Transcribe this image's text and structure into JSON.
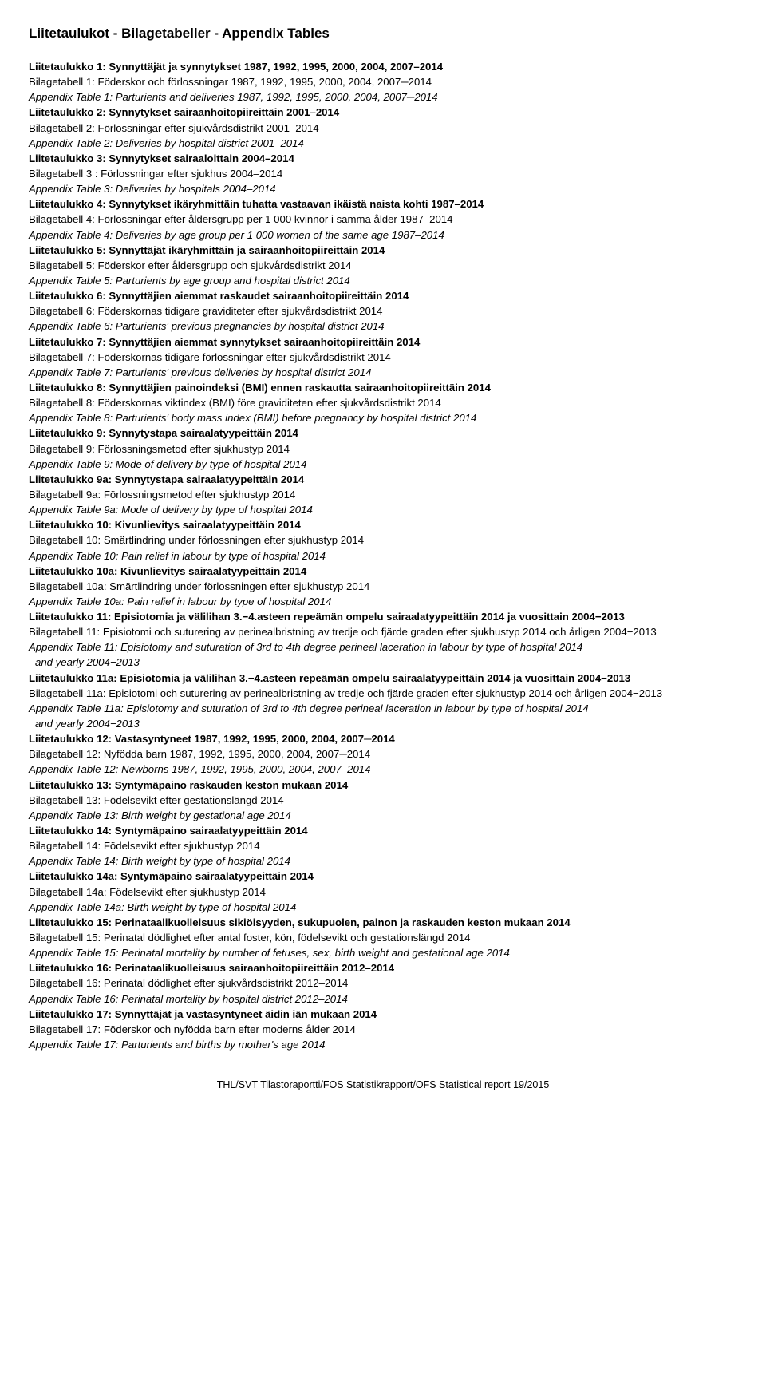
{
  "title": "Liitetaulukot - Bilagetabeller - Appendix Tables",
  "entries": [
    {
      "fi": "Liitetaulukko 1: Synnyttäjät ja synnytykset 1987, 1992, 1995, 2000, 2004, 2007–2014",
      "sv": "Bilagetabell 1: Föderskor och förlossningar 1987, 1992, 1995, 2000, 2004, 2007─2014",
      "en": "Appendix Table 1: Parturients and deliveries 1987, 1992, 1995, 2000, 2004, 2007─2014"
    },
    {
      "fi": "Liitetaulukko 2: Synnytykset sairaanhoitopiireittäin 2001–2014",
      "sv": "Bilagetabell 2: Förlossningar efter sjukvårdsdistrikt 2001–2014",
      "en": "Appendix Table 2: Deliveries by hospital district 2001–2014"
    },
    {
      "fi": "Liitetaulukko 3: Synnytykset sairaaloittain 2004–2014",
      "sv": "Bilagetabell 3 : Förlossningar efter sjukhus 2004–2014",
      "en": "Appendix Table 3: Deliveries by hospitals 2004–2014"
    },
    {
      "fi": "Liitetaulukko 4: Synnytykset ikäryhmittäin tuhatta vastaavan ikäistä naista kohti 1987–2014",
      "sv": "Bilagetabell 4: Förlossningar efter åldersgrupp per 1 000 kvinnor i samma ålder 1987–2014",
      "en": "Appendix Table 4: Deliveries by age group per 1 000 women of the same age 1987–2014"
    },
    {
      "fi": "Liitetaulukko 5: Synnyttäjät ikäryhmittäin ja sairaanhoitopiireittäin 2014",
      "sv": "Bilagetabell 5: Föderskor efter åldersgrupp och sjukvårdsdistrikt 2014",
      "en": "Appendix Table 5: Parturients by age group and hospital district 2014"
    },
    {
      "fi": "Liitetaulukko 6: Synnyttäjien aiemmat raskaudet sairaanhoitopiireittäin 2014",
      "sv": "Bilagetabell 6: Föderskornas tidigare graviditeter efter sjukvårdsdistrikt 2014",
      "en": "Appendix Table 6: Parturients' previous pregnancies by hospital district 2014"
    },
    {
      "fi": "Liitetaulukko 7: Synnyttäjien aiemmat synnytykset sairaanhoitopiireittäin 2014",
      "sv": "Bilagetabell 7: Föderskornas tidigare förlossningar efter sjukvårdsdistrikt 2014",
      "en": "Appendix Table 7: Parturients' previous deliveries by hospital district 2014"
    },
    {
      "fi": "Liitetaulukko 8: Synnyttäjien painoindeksi (BMI) ennen raskautta sairaanhoitopiireittäin 2014",
      "sv": "Bilagetabell 8: Föderskornas viktindex (BMI) före graviditeten efter sjukvårdsdistrikt 2014",
      "en": "Appendix Table 8: Parturients' body mass index (BMI) before pregnancy by hospital district 2014"
    },
    {
      "fi": "Liitetaulukko 9: Synnytystapa sairaalatyypeittäin 2014",
      "sv": "Bilagetabell 9: Förlossningsmetod efter sjukhustyp 2014",
      "en": "Appendix Table 9: Mode of delivery by type of hospital 2014"
    },
    {
      "fi": "Liitetaulukko 9a: Synnytystapa sairaalatyypeittäin 2014",
      "sv": "Bilagetabell 9a: Förlossningsmetod efter sjukhustyp 2014",
      "en": "Appendix Table 9a: Mode of delivery by type of hospital 2014"
    },
    {
      "fi": "Liitetaulukko 10: Kivunlievitys sairaalatyypeittäin 2014",
      "sv": "Bilagetabell 10: Smärtlindring under förlossningen efter sjukhustyp 2014",
      "en": "Appendix Table 10: Pain relief in labour by type of hospital 2014"
    },
    {
      "fi": "Liitetaulukko 10a: Kivunlievitys sairaalatyypeittäin 2014",
      "sv": "Bilagetabell 10a: Smärtlindring under förlossningen efter sjukhustyp 2014",
      "en": "Appendix Table 10a: Pain relief in labour by type of hospital 2014"
    },
    {
      "fi": "Liitetaulukko 11: Episiotomia ja välilihan 3.−4.asteen repeämän ompelu sairaalatyypeittäin 2014 ja vuosittain 2004−2013",
      "sv": "Bilagetabell 11: Episiotomi och suturering av perinealbristning av tredje och fjärde graden efter sjukhustyp 2014 och årligen 2004−2013",
      "en": "Appendix Table 11: Episiotomy and suturation of 3rd to 4th degree perineal laceration in labour by type of hospital 2014",
      "en_sub": " and yearly 2004−2013"
    },
    {
      "fi": "Liitetaulukko 11a: Episiotomia ja välilihan 3.−4.asteen repeämän ompelu sairaalatyypeittäin 2014 ja vuosittain 2004−2013",
      "sv": "Bilagetabell 11a: Episiotomi och suturering av perinealbristning av tredje och fjärde graden efter sjukhustyp 2014 och årligen 2004−2013",
      "en": "Appendix Table 11a: Episiotomy and suturation of 3rd to 4th degree perineal laceration in labour by type of hospital 2014",
      "en_sub": " and yearly 2004−2013"
    },
    {
      "fi": "Liitetaulukko 12: Vastasyntyneet 1987, 1992, 1995, 2000, 2004, 2007─2014",
      "sv": "Bilagetabell 12: Nyfödda barn 1987, 1992, 1995, 2000, 2004, 2007─2014",
      "en": "Appendix Table 12: Newborns 1987, 1992, 1995, 2000, 2004, 2007–2014"
    },
    {
      "fi": "Liitetaulukko 13: Syntymäpaino raskauden keston mukaan 2014",
      "sv": "Bilagetabell 13: Födelsevikt efter gestationslängd 2014",
      "en": "Appendix Table 13: Birth weight by gestational age 2014"
    },
    {
      "fi": "Liitetaulukko 14: Syntymäpaino sairaalatyypeittäin 2014",
      "sv": "Bilagetabell 14: Födelsevikt efter sjukhustyp 2014",
      "en": "Appendix Table 14: Birth weight by type of hospital 2014"
    },
    {
      "fi": "Liitetaulukko 14a: Syntymäpaino sairaalatyypeittäin 2014",
      "sv": "Bilagetabell 14a: Födelsevikt efter sjukhustyp 2014",
      "en": "Appendix Table 14a: Birth weight by type of hospital 2014"
    },
    {
      "fi": "Liitetaulukko 15: Perinataalikuolleisuus sikiöisyyden, sukupuolen, painon ja raskauden keston mukaan 2014",
      "sv": "Bilagetabell 15: Perinatal dödlighet efter antal foster, kön, födelsevikt och gestationslängd 2014",
      "en": "Appendix Table 15: Perinatal mortality by number of fetuses, sex, birth weight and gestational age 2014"
    },
    {
      "fi": "Liitetaulukko 16: Perinataalikuolleisuus sairaanhoitopiireittäin 2012–2014",
      "sv": "Bilagetabell 16: Perinatal dödlighet efter sjukvårdsdistrikt 2012–2014",
      "en": "Appendix Table 16: Perinatal mortality by hospital district 2012–2014"
    },
    {
      "fi": "Liitetaulukko 17: Synnyttäjät ja vastasyntyneet äidin iän mukaan 2014",
      "sv": "Bilagetabell 17: Föderskor och nyfödda barn efter moderns ålder 2014",
      "en": "Appendix Table 17: Parturients and births by mother's age 2014"
    }
  ],
  "footer": "THL/SVT Tilastoraportti/FOS Statistikrapport/OFS Statistical report 19/2015"
}
